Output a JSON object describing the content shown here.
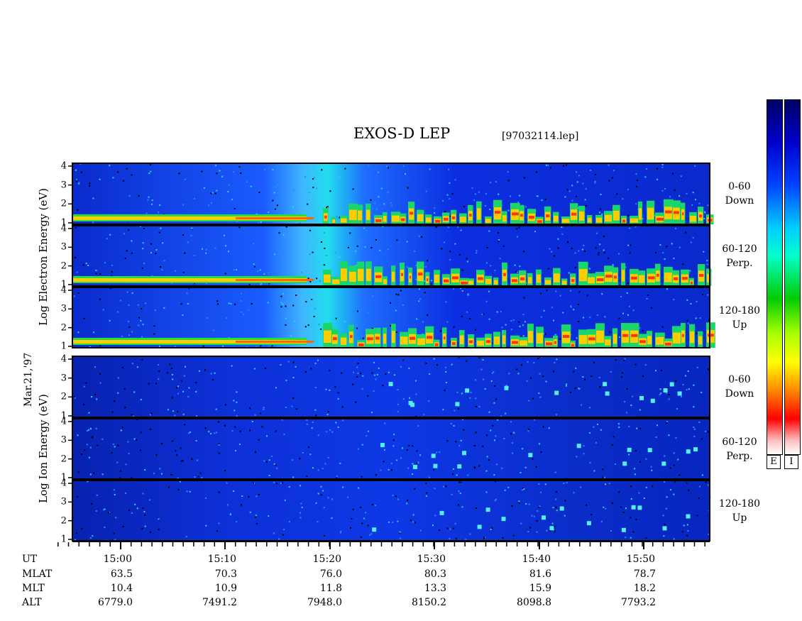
{
  "title": "EXOS-D LEP",
  "file": "[97032114.lep]",
  "date_label": "Mar.21,'97",
  "electron_label": "Log  Electron  Energy (eV)",
  "ion_label": "Log  Ion  Energy (eV)",
  "colorbar": {
    "e_label": "E",
    "i_label": "I"
  },
  "chart_data": {
    "type": "heatmap",
    "y_ticks": [
      "1",
      "2",
      "3",
      "4"
    ],
    "x_axis": {
      "tick_labels": [
        "15:00",
        "15:10",
        "15:20",
        "15:30",
        "15:40",
        "15:50"
      ],
      "minor_ticks_per_minute": 1,
      "range_minutes": [
        14.5,
        15.7
      ]
    },
    "panels": [
      {
        "species": "electron",
        "pitch": "0-60",
        "direction": "Down"
      },
      {
        "species": "electron",
        "pitch": "60-120",
        "direction": "Perp."
      },
      {
        "species": "electron",
        "pitch": "120-180",
        "direction": "Up"
      },
      {
        "species": "ion",
        "pitch": "0-60",
        "direction": "Down"
      },
      {
        "species": "ion",
        "pitch": "60-120",
        "direction": "Perp."
      },
      {
        "species": "ion",
        "pitch": "120-180",
        "direction": "Up"
      }
    ],
    "ephemeris": {
      "rows": [
        {
          "label": "UT",
          "values": [
            "15:00",
            "15:10",
            "15:20",
            "15:30",
            "15:40",
            "15:50"
          ]
        },
        {
          "label": "MLAT",
          "values": [
            "63.5",
            "70.3",
            "76.0",
            "80.3",
            "81.6",
            "78.7"
          ]
        },
        {
          "label": "MLT",
          "values": [
            "10.4",
            "10.9",
            "11.8",
            "13.3",
            "15.9",
            "18.2"
          ]
        },
        {
          "label": "ALT",
          "values": [
            "6779.0",
            "7491.2",
            "7948.0",
            "8150.2",
            "8098.8",
            "7793.2"
          ]
        }
      ]
    }
  }
}
